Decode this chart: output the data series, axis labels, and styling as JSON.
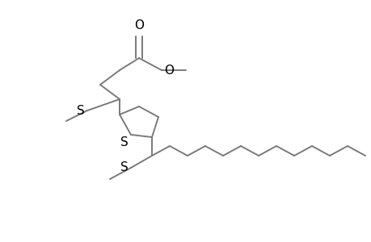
{
  "bg_color": "#ffffff",
  "line_color": "#7a7a7a",
  "text_color": "#000000",
  "line_width": 1.4,
  "font_size": 10,
  "figsize": [
    4.6,
    3.0
  ],
  "dpi": 100,
  "xlim": [
    0,
    460
  ],
  "ylim": [
    0,
    300
  ]
}
